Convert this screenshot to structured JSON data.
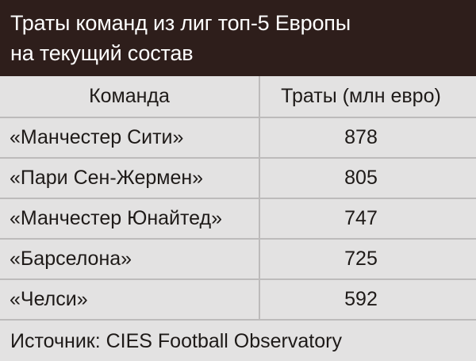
{
  "header": {
    "title_line1": "Траты команд из лиг топ-5 Европы",
    "title_line2": "на текущий состав"
  },
  "table": {
    "columns": [
      "Команда",
      "Траты (млн евро)"
    ],
    "rows": [
      {
        "team": "«Манчестер Сити»",
        "value": "878"
      },
      {
        "team": "«Пари Сен-Жермен»",
        "value": "805"
      },
      {
        "team": "«Манчестер Юнайтед»",
        "value": "747"
      },
      {
        "team": "«Барселона»",
        "value": "725"
      },
      {
        "team": "«Челси»",
        "value": "592"
      }
    ]
  },
  "source": "Источник: CIES Football Observatory",
  "colors": {
    "header_background": "#2e1e1b",
    "page_background": "#e3e2e2",
    "grid_lines": "#bdbbbb"
  },
  "chart_data": {
    "type": "table",
    "title": "Траты команд из лиг топ-5 Европы на текущий состав",
    "columns": [
      "Команда",
      "Траты (млн евро)"
    ],
    "categories": [
      "«Манчестер Сити»",
      "«Пари Сен-Жермен»",
      "«Манчестер Юнайтед»",
      "«Барселона»",
      "«Челси»"
    ],
    "values": [
      878,
      805,
      747,
      725,
      592
    ]
  }
}
